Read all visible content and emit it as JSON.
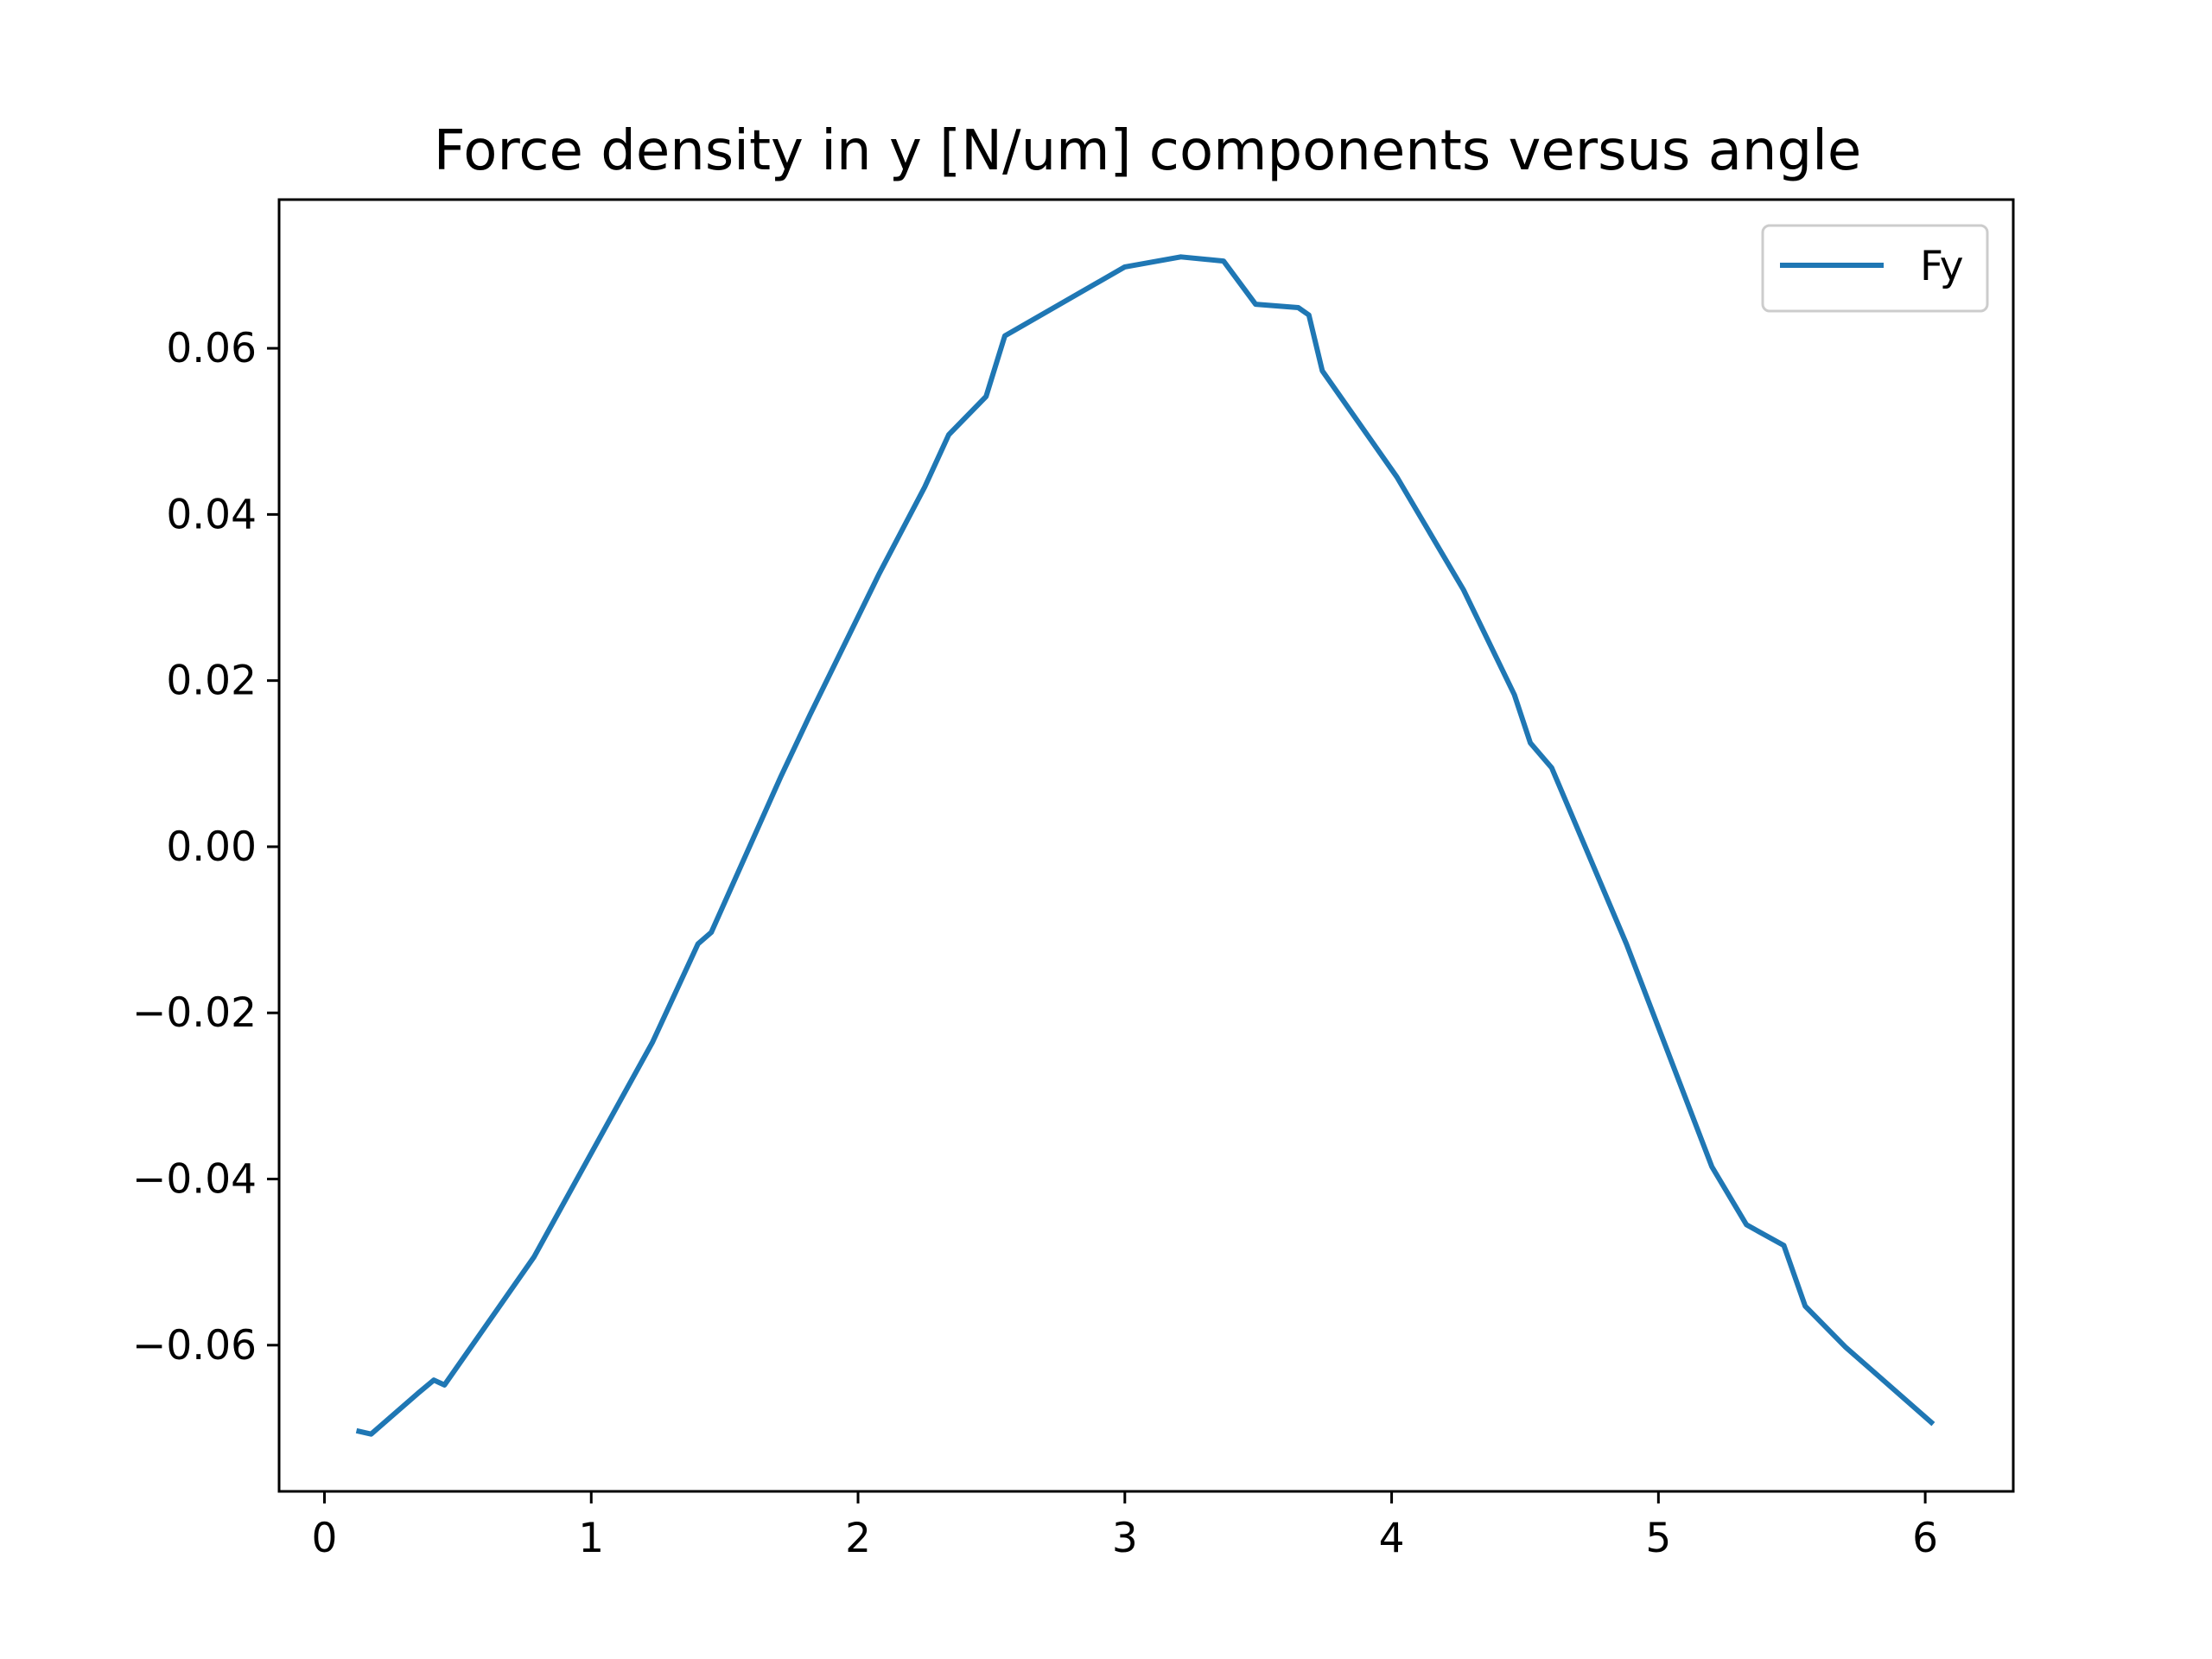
{
  "chart_data": {
    "type": "line",
    "title": "Force density in y [N/um] components versus angle",
    "xlabel": "",
    "ylabel": "",
    "xlim": [
      -0.17,
      6.33
    ],
    "ylim": [
      -0.0776,
      0.0779
    ],
    "xticks": [
      0,
      1,
      2,
      3,
      4,
      5,
      6
    ],
    "xtick_labels": [
      "0",
      "1",
      "2",
      "3",
      "4",
      "5",
      "6"
    ],
    "yticks": [
      -0.06,
      -0.04,
      -0.02,
      0.0,
      0.02,
      0.04,
      0.06
    ],
    "ytick_labels": [
      "−0.06",
      "−0.04",
      "−0.02",
      "0.00",
      "0.02",
      "0.04",
      "0.06"
    ],
    "grid": false,
    "legend_position": "top-right",
    "series": [
      {
        "name": "Fy",
        "color": "#1f77b4",
        "x": [
          0.12,
          0.175,
          0.35,
          0.41,
          0.45,
          0.785,
          1.23,
          1.4,
          1.45,
          1.71,
          1.82,
          2.08,
          2.25,
          2.34,
          2.48,
          2.55,
          3.0,
          3.21,
          3.37,
          3.49,
          3.65,
          3.69,
          3.74,
          4.02,
          4.27,
          4.46,
          4.52,
          4.6,
          4.88,
          5.2,
          5.33,
          5.47,
          5.55,
          5.7,
          6.03
        ],
        "y": [
          -0.0703,
          -0.0707,
          -0.0658,
          -0.0642,
          -0.0648,
          -0.0494,
          -0.0235,
          -0.0117,
          -0.0103,
          0.0084,
          0.0159,
          0.0329,
          0.0433,
          0.0496,
          0.0542,
          0.0615,
          0.0698,
          0.071,
          0.0705,
          0.0653,
          0.0649,
          0.064,
          0.0573,
          0.0445,
          0.0309,
          0.0183,
          0.0125,
          0.0095,
          -0.0117,
          -0.0385,
          -0.0455,
          -0.048,
          -0.0553,
          -0.0602,
          -0.0695
        ]
      }
    ]
  }
}
